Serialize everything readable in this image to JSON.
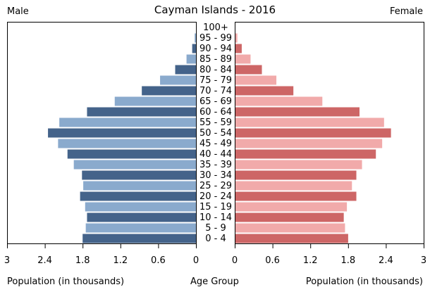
{
  "chart_data": {
    "type": "bar",
    "title": "Cayman Islands - 2016",
    "left_label": "Male",
    "right_label": "Female",
    "xlabel_left": "Population (in thousands)",
    "xlabel_center": "Age Group",
    "xlabel_right": "Population (in thousands)",
    "xlim": [
      0,
      3
    ],
    "xticks": [
      "3",
      "2.4",
      "1.8",
      "1.2",
      "0.6",
      "0"
    ],
    "xticks_right": [
      "0",
      "0.6",
      "1.2",
      "1.8",
      "2.4",
      "3"
    ],
    "categories": [
      "100+",
      "95 - 99",
      "90 - 94",
      "85 - 89",
      "80 - 84",
      "75 - 79",
      "70 - 74",
      "65 - 69",
      "60 - 64",
      "55 - 59",
      "50 - 54",
      "45 - 49",
      "40 - 44",
      "35 - 39",
      "30 - 34",
      "25 - 29",
      "20 - 24",
      "15 - 19",
      "10 - 14",
      "5 - 9",
      "0 - 4"
    ],
    "series": [
      {
        "name": "Male",
        "values": [
          0.0,
          0.02,
          0.06,
          0.15,
          0.33,
          0.57,
          0.86,
          1.29,
          1.73,
          2.17,
          2.35,
          2.19,
          2.04,
          1.94,
          1.81,
          1.79,
          1.84,
          1.76,
          1.73,
          1.75,
          1.8
        ]
      },
      {
        "name": "Female",
        "values": [
          0.0,
          0.03,
          0.1,
          0.24,
          0.42,
          0.65,
          0.92,
          1.38,
          1.97,
          2.36,
          2.47,
          2.33,
          2.23,
          2.01,
          1.92,
          1.85,
          1.92,
          1.77,
          1.72,
          1.74,
          1.79
        ]
      }
    ],
    "colors": {
      "male_dark": "#44638a",
      "male_light": "#8aaacd",
      "female_dark": "#cd6666",
      "female_light": "#f1aaaa"
    },
    "grid": false
  }
}
